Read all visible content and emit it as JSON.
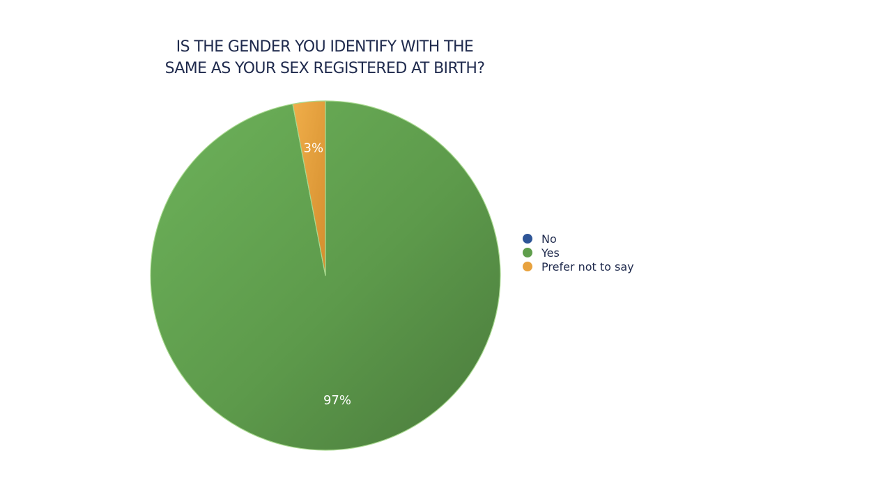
{
  "chart_data": {
    "type": "pie",
    "title_lines": [
      "IS THE GENDER YOU IDENTIFY WITH THE",
      "SAME AS YOUR SEX REGISTERED AT BIRTH?"
    ],
    "categories": [
      "No",
      "Yes",
      "Prefer not to say"
    ],
    "values": [
      0,
      97,
      3
    ],
    "data_labels": [
      "",
      "97%",
      "3%"
    ],
    "colors": [
      "#2e5597",
      "#5f9e4c",
      "#e8a23e"
    ],
    "legend_position": "right"
  }
}
